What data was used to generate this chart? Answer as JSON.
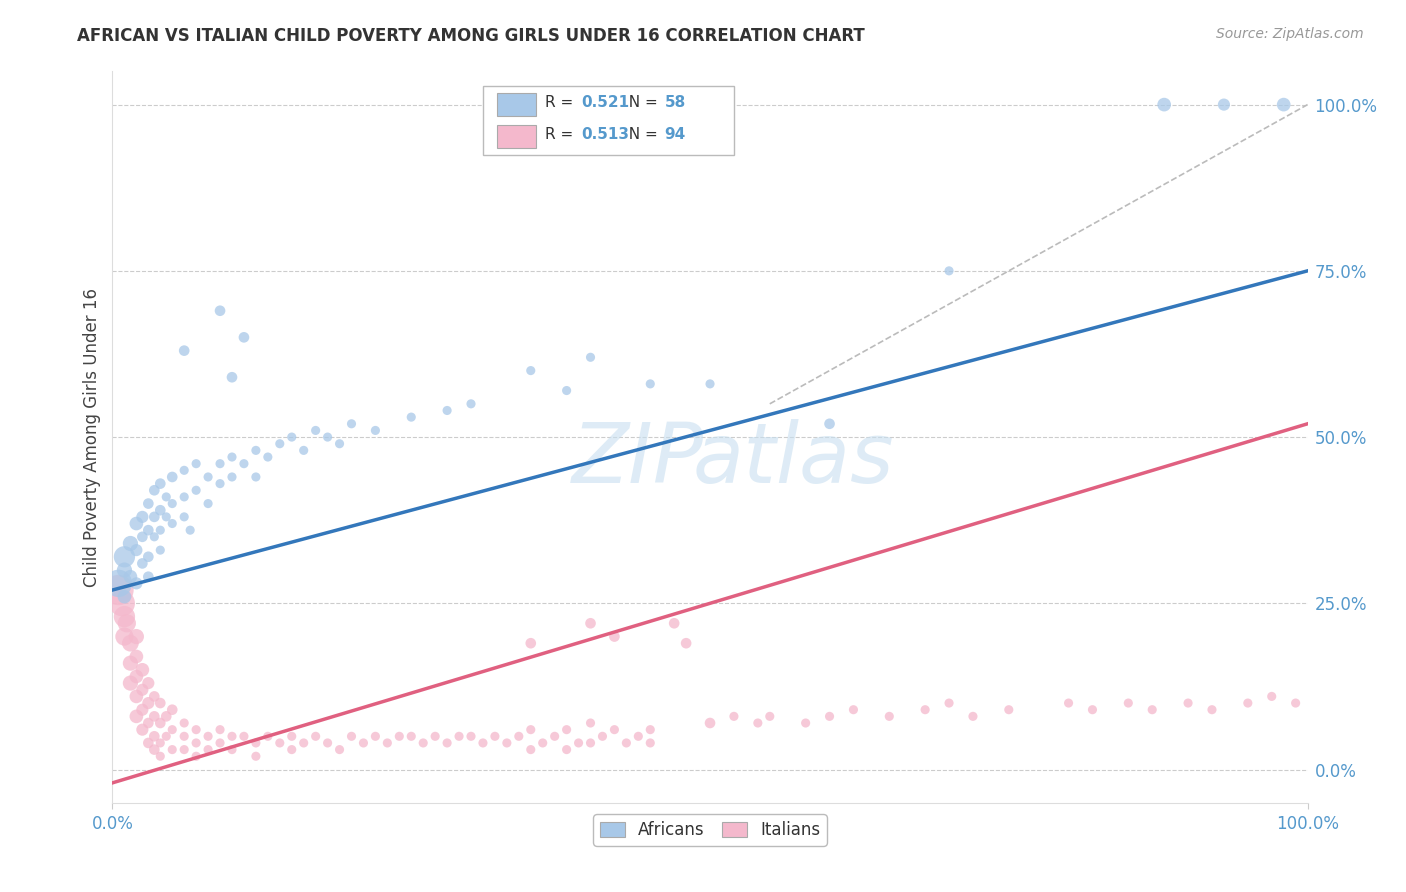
{
  "title": "AFRICAN VS ITALIAN CHILD POVERTY AMONG GIRLS UNDER 16 CORRELATION CHART",
  "source": "Source: ZipAtlas.com",
  "ylabel": "Child Poverty Among Girls Under 16",
  "xlim": [
    0,
    1.0
  ],
  "ylim": [
    -0.05,
    1.05
  ],
  "ytick_vals": [
    0.0,
    0.25,
    0.5,
    0.75,
    1.0
  ],
  "ytick_labels": [
    "0.0%",
    "25.0%",
    "50.0%",
    "75.0%",
    "100.0%"
  ],
  "blue_R": "0.521",
  "blue_N": "58",
  "pink_R": "0.513",
  "pink_N": "94",
  "blue_color": "#a8c8e8",
  "pink_color": "#f4b8cc",
  "blue_line_color": "#3377bb",
  "pink_line_color": "#e06080",
  "diag_color": "#bbbbbb",
  "blue_line_start_x": 0.0,
  "blue_line_start_y": 0.27,
  "blue_line_end_x": 1.0,
  "blue_line_end_y": 0.75,
  "pink_line_start_x": 0.0,
  "pink_line_start_y": -0.02,
  "pink_line_end_x": 1.0,
  "pink_line_end_y": 0.52,
  "watermark_text": "ZIPatlas",
  "watermark_color": "#d0e4f0",
  "background_color": "#ffffff",
  "grid_color": "#cccccc",
  "tick_color": "#5599cc",
  "label_color": "#444444",
  "africans_points": [
    [
      0.005,
      0.28,
      18
    ],
    [
      0.01,
      0.32,
      14
    ],
    [
      0.01,
      0.3,
      10
    ],
    [
      0.01,
      0.26,
      9
    ],
    [
      0.015,
      0.34,
      10
    ],
    [
      0.015,
      0.29,
      9
    ],
    [
      0.02,
      0.37,
      9
    ],
    [
      0.02,
      0.33,
      8
    ],
    [
      0.02,
      0.28,
      8
    ],
    [
      0.025,
      0.38,
      8
    ],
    [
      0.025,
      0.35,
      7
    ],
    [
      0.025,
      0.31,
      7
    ],
    [
      0.03,
      0.4,
      7
    ],
    [
      0.03,
      0.36,
      7
    ],
    [
      0.03,
      0.32,
      7
    ],
    [
      0.03,
      0.29,
      7
    ],
    [
      0.035,
      0.42,
      7
    ],
    [
      0.035,
      0.38,
      7
    ],
    [
      0.035,
      0.35,
      6
    ],
    [
      0.04,
      0.43,
      7
    ],
    [
      0.04,
      0.39,
      7
    ],
    [
      0.04,
      0.36,
      6
    ],
    [
      0.04,
      0.33,
      6
    ],
    [
      0.045,
      0.41,
      6
    ],
    [
      0.045,
      0.38,
      6
    ],
    [
      0.05,
      0.44,
      7
    ],
    [
      0.05,
      0.4,
      6
    ],
    [
      0.05,
      0.37,
      6
    ],
    [
      0.06,
      0.45,
      6
    ],
    [
      0.06,
      0.41,
      6
    ],
    [
      0.06,
      0.38,
      6
    ],
    [
      0.065,
      0.36,
      6
    ],
    [
      0.07,
      0.46,
      6
    ],
    [
      0.07,
      0.42,
      6
    ],
    [
      0.08,
      0.44,
      6
    ],
    [
      0.08,
      0.4,
      6
    ],
    [
      0.09,
      0.46,
      6
    ],
    [
      0.09,
      0.43,
      6
    ],
    [
      0.1,
      0.47,
      6
    ],
    [
      0.1,
      0.44,
      6
    ],
    [
      0.11,
      0.46,
      6
    ],
    [
      0.12,
      0.48,
      6
    ],
    [
      0.12,
      0.44,
      6
    ],
    [
      0.13,
      0.47,
      6
    ],
    [
      0.14,
      0.49,
      6
    ],
    [
      0.15,
      0.5,
      6
    ],
    [
      0.16,
      0.48,
      6
    ],
    [
      0.17,
      0.51,
      6
    ],
    [
      0.18,
      0.5,
      6
    ],
    [
      0.19,
      0.49,
      6
    ],
    [
      0.2,
      0.52,
      6
    ],
    [
      0.22,
      0.51,
      6
    ],
    [
      0.25,
      0.53,
      6
    ],
    [
      0.28,
      0.54,
      6
    ],
    [
      0.3,
      0.55,
      6
    ],
    [
      0.06,
      0.63,
      7
    ],
    [
      0.09,
      0.69,
      7
    ],
    [
      0.1,
      0.59,
      7
    ],
    [
      0.11,
      0.65,
      7
    ],
    [
      0.35,
      0.6,
      6
    ],
    [
      0.38,
      0.57,
      6
    ],
    [
      0.4,
      0.62,
      6
    ],
    [
      0.45,
      0.58,
      6
    ],
    [
      0.5,
      0.58,
      6
    ],
    [
      0.6,
      0.52,
      7
    ],
    [
      0.7,
      0.75,
      6
    ],
    [
      0.88,
      1.0,
      9
    ],
    [
      0.93,
      1.0,
      8
    ],
    [
      0.98,
      1.0,
      9
    ]
  ],
  "italians_points": [
    [
      0.005,
      0.27,
      20
    ],
    [
      0.008,
      0.25,
      17
    ],
    [
      0.01,
      0.23,
      14
    ],
    [
      0.01,
      0.2,
      12
    ],
    [
      0.012,
      0.22,
      12
    ],
    [
      0.015,
      0.19,
      11
    ],
    [
      0.015,
      0.16,
      10
    ],
    [
      0.015,
      0.13,
      10
    ],
    [
      0.02,
      0.2,
      10
    ],
    [
      0.02,
      0.17,
      9
    ],
    [
      0.02,
      0.14,
      9
    ],
    [
      0.02,
      0.11,
      9
    ],
    [
      0.02,
      0.08,
      9
    ],
    [
      0.025,
      0.15,
      9
    ],
    [
      0.025,
      0.12,
      8
    ],
    [
      0.025,
      0.09,
      8
    ],
    [
      0.025,
      0.06,
      8
    ],
    [
      0.03,
      0.13,
      8
    ],
    [
      0.03,
      0.1,
      8
    ],
    [
      0.03,
      0.07,
      7
    ],
    [
      0.03,
      0.04,
      7
    ],
    [
      0.035,
      0.11,
      7
    ],
    [
      0.035,
      0.08,
      7
    ],
    [
      0.035,
      0.05,
      7
    ],
    [
      0.035,
      0.03,
      7
    ],
    [
      0.04,
      0.1,
      7
    ],
    [
      0.04,
      0.07,
      7
    ],
    [
      0.04,
      0.04,
      6
    ],
    [
      0.04,
      0.02,
      6
    ],
    [
      0.045,
      0.08,
      7
    ],
    [
      0.045,
      0.05,
      6
    ],
    [
      0.05,
      0.09,
      7
    ],
    [
      0.05,
      0.06,
      6
    ],
    [
      0.05,
      0.03,
      6
    ],
    [
      0.06,
      0.07,
      6
    ],
    [
      0.06,
      0.05,
      6
    ],
    [
      0.06,
      0.03,
      6
    ],
    [
      0.07,
      0.06,
      6
    ],
    [
      0.07,
      0.04,
      6
    ],
    [
      0.07,
      0.02,
      6
    ],
    [
      0.08,
      0.05,
      6
    ],
    [
      0.08,
      0.03,
      6
    ],
    [
      0.09,
      0.06,
      6
    ],
    [
      0.09,
      0.04,
      6
    ],
    [
      0.1,
      0.05,
      6
    ],
    [
      0.1,
      0.03,
      6
    ],
    [
      0.11,
      0.05,
      6
    ],
    [
      0.12,
      0.04,
      6
    ],
    [
      0.12,
      0.02,
      6
    ],
    [
      0.13,
      0.05,
      6
    ],
    [
      0.14,
      0.04,
      6
    ],
    [
      0.15,
      0.05,
      6
    ],
    [
      0.15,
      0.03,
      6
    ],
    [
      0.16,
      0.04,
      6
    ],
    [
      0.17,
      0.05,
      6
    ],
    [
      0.18,
      0.04,
      6
    ],
    [
      0.19,
      0.03,
      6
    ],
    [
      0.2,
      0.05,
      6
    ],
    [
      0.21,
      0.04,
      6
    ],
    [
      0.22,
      0.05,
      6
    ],
    [
      0.23,
      0.04,
      6
    ],
    [
      0.24,
      0.05,
      6
    ],
    [
      0.25,
      0.05,
      6
    ],
    [
      0.26,
      0.04,
      6
    ],
    [
      0.27,
      0.05,
      6
    ],
    [
      0.28,
      0.04,
      6
    ],
    [
      0.29,
      0.05,
      6
    ],
    [
      0.3,
      0.05,
      6
    ],
    [
      0.31,
      0.04,
      6
    ],
    [
      0.32,
      0.05,
      6
    ],
    [
      0.33,
      0.04,
      6
    ],
    [
      0.34,
      0.05,
      6
    ],
    [
      0.35,
      0.06,
      6
    ],
    [
      0.35,
      0.03,
      6
    ],
    [
      0.36,
      0.04,
      6
    ],
    [
      0.37,
      0.05,
      6
    ],
    [
      0.38,
      0.06,
      6
    ],
    [
      0.38,
      0.03,
      6
    ],
    [
      0.39,
      0.04,
      6
    ],
    [
      0.4,
      0.07,
      6
    ],
    [
      0.4,
      0.04,
      6
    ],
    [
      0.41,
      0.05,
      6
    ],
    [
      0.42,
      0.06,
      6
    ],
    [
      0.43,
      0.04,
      6
    ],
    [
      0.44,
      0.05,
      6
    ],
    [
      0.45,
      0.06,
      6
    ],
    [
      0.45,
      0.04,
      6
    ],
    [
      0.35,
      0.19,
      7
    ],
    [
      0.4,
      0.22,
      7
    ],
    [
      0.42,
      0.2,
      7
    ],
    [
      0.47,
      0.22,
      7
    ],
    [
      0.48,
      0.19,
      7
    ],
    [
      0.5,
      0.07,
      7
    ],
    [
      0.52,
      0.08,
      6
    ],
    [
      0.54,
      0.07,
      6
    ],
    [
      0.55,
      0.08,
      6
    ],
    [
      0.58,
      0.07,
      6
    ],
    [
      0.6,
      0.08,
      6
    ],
    [
      0.62,
      0.09,
      6
    ],
    [
      0.65,
      0.08,
      6
    ],
    [
      0.68,
      0.09,
      6
    ],
    [
      0.7,
      0.1,
      6
    ],
    [
      0.72,
      0.08,
      6
    ],
    [
      0.75,
      0.09,
      6
    ],
    [
      0.8,
      0.1,
      6
    ],
    [
      0.82,
      0.09,
      6
    ],
    [
      0.85,
      0.1,
      6
    ],
    [
      0.87,
      0.09,
      6
    ],
    [
      0.9,
      0.1,
      6
    ],
    [
      0.92,
      0.09,
      6
    ],
    [
      0.95,
      0.1,
      6
    ],
    [
      0.97,
      0.11,
      6
    ],
    [
      0.99,
      0.1,
      6
    ]
  ]
}
